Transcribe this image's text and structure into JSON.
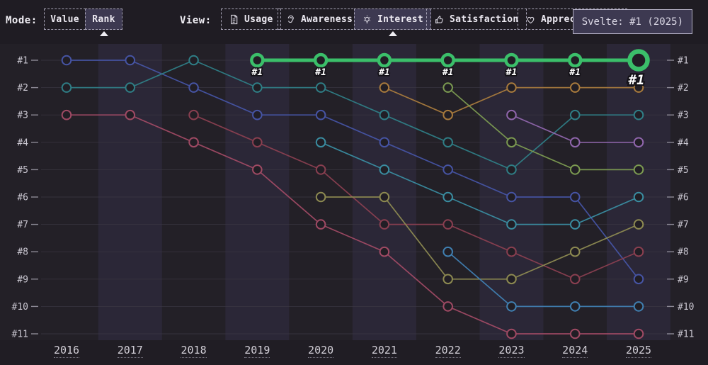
{
  "header": {
    "mode": {
      "label": "Mode:",
      "options": [
        {
          "label": "Value",
          "selected": false
        },
        {
          "label": "Rank",
          "selected": true
        }
      ]
    },
    "view": {
      "label": "View:",
      "options": [
        {
          "label": "Usage",
          "icon": "document-icon",
          "selected": false
        },
        {
          "label": "Awareness",
          "icon": "ear-icon",
          "selected": false
        },
        {
          "label": "Interest",
          "icon": "lightbulb-icon",
          "selected": true
        },
        {
          "label": "Satisfaction",
          "icon": "thumbs-up-icon",
          "selected": false
        },
        {
          "label": "Appreciation",
          "icon": "heart-icon",
          "selected": false
        }
      ]
    },
    "tooltip": {
      "text": "Svelte: #1 (2025)"
    }
  },
  "chart_data": {
    "type": "line",
    "subtype": "bump-rank-chart",
    "metric_shown": "Interest",
    "mode_shown": "Rank",
    "x": [
      "2016",
      "2017",
      "2018",
      "2019",
      "2020",
      "2021",
      "2022",
      "2023",
      "2024",
      "2025"
    ],
    "y_rank_labels": [
      "#1",
      "#2",
      "#3",
      "#4",
      "#5",
      "#6",
      "#7",
      "#8",
      "#9",
      "#10",
      "#11"
    ],
    "y_axis_inverted": true,
    "grid": true,
    "legend_position": "none",
    "highlight": {
      "name": "Svelte",
      "color": "#3bbf6a",
      "tooltip": "Svelte: #1 (2025)",
      "point_label": "#1",
      "ranks": [
        null,
        null,
        null,
        1,
        1,
        1,
        1,
        1,
        1,
        1
      ]
    },
    "series": [
      {
        "id": "series-indigo",
        "color": "#4654a4",
        "ranks": [
          1,
          1,
          2,
          3,
          3,
          4,
          5,
          6,
          6,
          9
        ]
      },
      {
        "id": "series-teal",
        "color": "#2f7e86",
        "ranks": [
          2,
          2,
          1,
          2,
          2,
          3,
          4,
          5,
          3,
          3
        ]
      },
      {
        "id": "series-rose",
        "color": "#a04a64",
        "ranks": [
          3,
          3,
          4,
          5,
          7,
          8,
          10,
          11,
          11,
          11
        ]
      },
      {
        "id": "series-maroon",
        "color": "#8a3f50",
        "ranks": [
          null,
          null,
          3,
          4,
          5,
          7,
          7,
          8,
          9,
          8
        ]
      },
      {
        "id": "series-cyan",
        "color": "#3a8da1",
        "ranks": [
          null,
          null,
          null,
          null,
          4,
          5,
          6,
          7,
          7,
          6
        ]
      },
      {
        "id": "series-khaki",
        "color": "#8d8a51",
        "ranks": [
          null,
          null,
          null,
          null,
          6,
          6,
          9,
          9,
          8,
          7
        ]
      },
      {
        "id": "series-orange",
        "color": "#a97b3d",
        "ranks": [
          null,
          null,
          null,
          null,
          null,
          2,
          3,
          2,
          2,
          2
        ]
      },
      {
        "id": "series-olive",
        "color": "#7c9b51",
        "ranks": [
          null,
          null,
          null,
          null,
          null,
          null,
          2,
          4,
          5,
          5
        ]
      },
      {
        "id": "series-azure",
        "color": "#4080b2",
        "ranks": [
          null,
          null,
          null,
          null,
          null,
          null,
          8,
          10,
          10,
          10
        ]
      },
      {
        "id": "series-purple",
        "color": "#9066ad",
        "ranks": [
          null,
          null,
          null,
          null,
          null,
          null,
          null,
          3,
          4,
          4
        ]
      }
    ],
    "colors": {
      "background": "#232027",
      "band_light": "#2b2737",
      "grid": "#3c3844",
      "tick": "#8d8a96",
      "axis_label": "#cac7d1",
      "highlight_green": "#3bbf6a"
    }
  }
}
